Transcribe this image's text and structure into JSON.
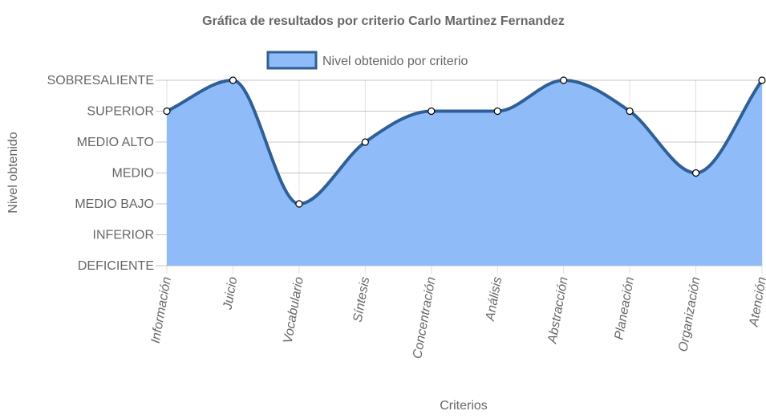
{
  "chart_data": {
    "type": "area",
    "title": "Gráfica de resultados por criterio Carlo Martinez Fernandez",
    "xlabel": "Criterios",
    "ylabel": "Nivel obtenido",
    "categories": [
      "Información",
      "Juicio",
      "Vocabulario",
      "Síntesis",
      "Concentración",
      "Análisis",
      "Abstracción",
      "Planeación",
      "Organización",
      "Atención"
    ],
    "y_levels": [
      "DEFICIENTE",
      "INFERIOR",
      "MEDIO BAJO",
      "MEDIO",
      "MEDIO ALTO",
      "SUPERIOR",
      "SOBRESALIENTE"
    ],
    "ylim": [
      0,
      6
    ],
    "series": [
      {
        "name": "Nivel obtenido por criterio",
        "values": [
          5,
          6,
          2,
          4,
          5,
          5,
          6,
          5,
          3,
          6
        ],
        "fill_color": "#8fbcf8",
        "line_color": "#2f5f97"
      }
    ],
    "grid": true,
    "legend_position": "top-center"
  }
}
